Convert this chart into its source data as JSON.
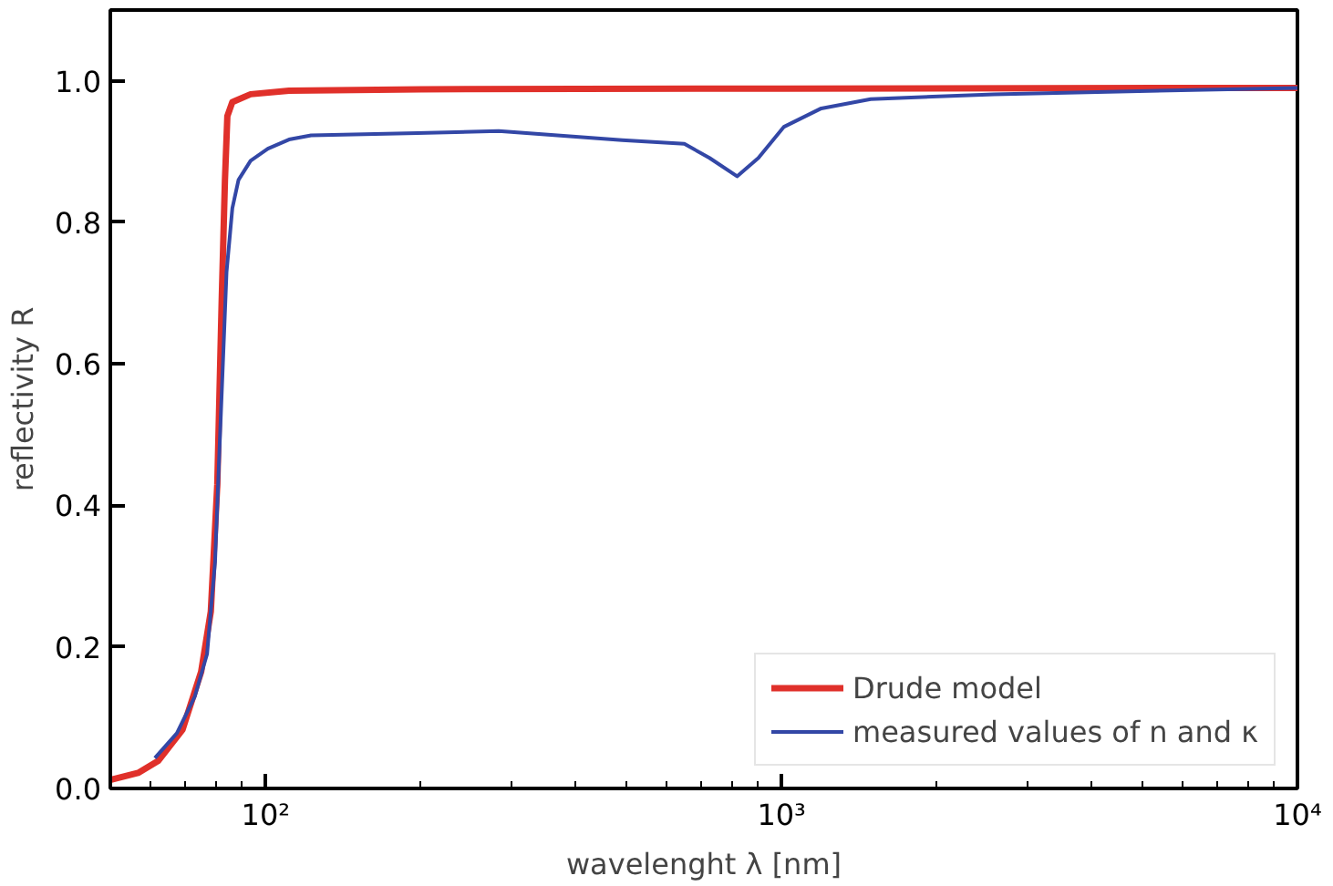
{
  "chart_data": {
    "type": "line",
    "xlabel": "wavelenght λ [nm]",
    "ylabel": "reflectivity R",
    "log": "x",
    "xlim": [
      50,
      10000
    ],
    "ylim": [
      0,
      1.1
    ],
    "xticks": [
      {
        "value": 100,
        "label": "10²"
      },
      {
        "value": 1000,
        "label": "10³"
      },
      {
        "value": 10000,
        "label": "10⁴"
      }
    ],
    "yticks": [
      {
        "value": 0,
        "label": "0.0"
      },
      {
        "value": 0.2,
        "label": "0.2"
      },
      {
        "value": 0.4,
        "label": "0.4"
      },
      {
        "value": 0.6,
        "label": "0.6"
      },
      {
        "value": 0.8,
        "label": "0.8"
      },
      {
        "value": 1,
        "label": "1.0"
      }
    ],
    "grid": false,
    "legend": "bottom right",
    "line_style": "solid",
    "marker": "none",
    "series": [
      {
        "name": "Drude model",
        "color": "#e0302a",
        "x": [
          50,
          56.6,
          61.9,
          69,
          75,
          78.3,
          80.6,
          82.2,
          83.4,
          84.3,
          86.2,
          93.5,
          111,
          200,
          1000,
          10000
        ],
        "values": [
          0.012,
          0.022,
          0.039,
          0.083,
          0.165,
          0.25,
          0.43,
          0.69,
          0.86,
          0.95,
          0.97,
          0.981,
          0.986,
          0.988,
          0.989,
          0.99
        ]
      },
      {
        "name": "measured values of n and κ",
        "color": "#3347a6",
        "x": [
          61,
          67.3,
          72.9,
          77,
          79.8,
          81.7,
          84,
          86.2,
          88.6,
          93.5,
          101,
          111,
          122.5,
          197,
          283,
          491,
          648,
          725,
          820,
          902,
          1011,
          1194,
          1489,
          2581,
          10000
        ],
        "values": [
          0.043,
          0.078,
          0.13,
          0.19,
          0.32,
          0.51,
          0.73,
          0.82,
          0.86,
          0.887,
          0.904,
          0.917,
          0.923,
          0.926,
          0.929,
          0.916,
          0.911,
          0.891,
          0.865,
          0.891,
          0.935,
          0.961,
          0.974,
          0.981,
          0.99
        ]
      }
    ]
  }
}
